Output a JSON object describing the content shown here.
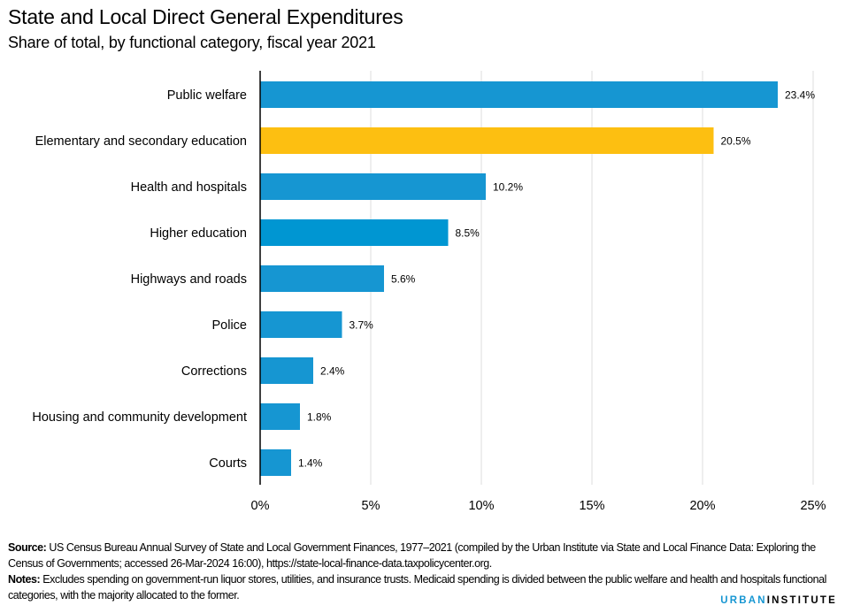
{
  "header": {
    "title": "State and Local Direct General Expenditures",
    "subtitle": "Share of total, by functional category, fiscal year 2021"
  },
  "chart_data": {
    "type": "bar",
    "orientation": "horizontal",
    "title": "State and Local Direct General Expenditures",
    "subtitle": "Share of total, by functional category, fiscal year 2021",
    "xlabel": "",
    "ylabel": "",
    "categories": [
      "Public welfare",
      "Elementary and secondary education",
      "Health and hospitals",
      "Higher education",
      "Highways and roads",
      "Police",
      "Corrections",
      "Housing and community development",
      "Courts"
    ],
    "values": [
      23.4,
      20.5,
      10.2,
      8.5,
      5.6,
      3.7,
      2.4,
      1.8,
      1.4
    ],
    "value_labels": [
      "23.4%",
      "20.5%",
      "10.2%",
      "8.5%",
      "5.6%",
      "3.7%",
      "2.4%",
      "1.8%",
      "1.4%"
    ],
    "bar_colors": [
      "#1696d2",
      "#fdbf11",
      "#1696d2",
      "#0096d2",
      "#1696d2",
      "#1696d2",
      "#1696d2",
      "#1696d2",
      "#1696d2"
    ],
    "highlight_color": "#f0b91c",
    "default_color": "#1696d2",
    "xlim": [
      0,
      25
    ],
    "xticks": [
      0,
      5,
      10,
      15,
      20,
      25
    ],
    "xtick_labels": [
      "0%",
      "5%",
      "10%",
      "15%",
      "20%",
      "25%"
    ],
    "grid": true,
    "legend": "none"
  },
  "footer": {
    "source_label": "Source:",
    "source_text": " US Census Bureau Annual Survey of State and Local Government Finances, 1977–2021 (compiled by the Urban Institute via State and Local Finance Data: Exploring the Census of Governments; accessed 26-Mar-2024 16:00), https://state-local-finance-data.taxpolicycenter.org.",
    "notes_label": "Notes:",
    "notes_text": " Excludes spending on government-run liquor stores, utilities, and insurance trusts. Medicaid spending is divided between the public welfare and health and hospitals functional categories, with the majority allocated to the former."
  },
  "logo": {
    "part1": "URBAN",
    "part2": "INSTITUTE",
    "color": "#1696d2"
  }
}
